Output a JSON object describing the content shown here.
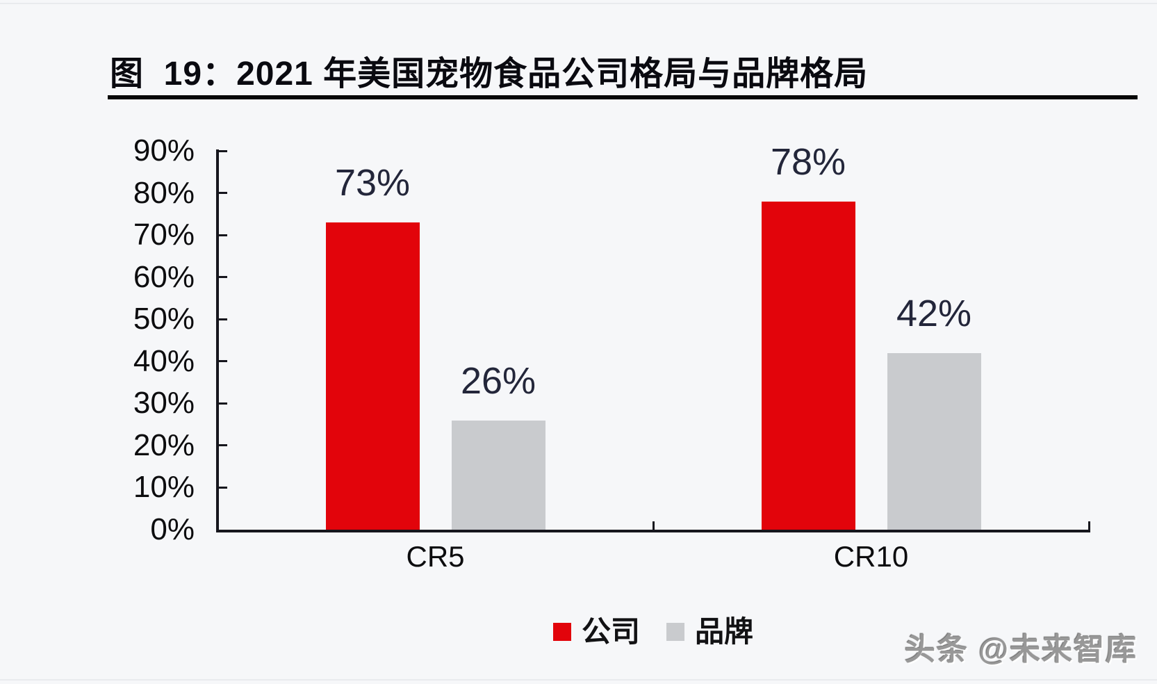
{
  "figure": {
    "title": "图  19：2021 年美国宠物食品公司格局与品牌格局",
    "watermark": "头条 @未来智库"
  },
  "chart_data": {
    "type": "bar",
    "title": "2021 年美国宠物食品公司格局与品牌格局",
    "categories": [
      "CR5",
      "CR10"
    ],
    "series": [
      {
        "name": "公司",
        "slug": "company",
        "color": "#e2040b",
        "values": [
          73,
          78
        ],
        "labels": [
          "73%",
          "78%"
        ]
      },
      {
        "name": "品牌",
        "slug": "brand",
        "color": "#c9cbce",
        "values": [
          26,
          42
        ],
        "labels": [
          "26%",
          "42%"
        ]
      }
    ],
    "ylim": [
      0,
      90
    ],
    "ytick_step": 10,
    "ytick_labels": [
      "0%",
      "10%",
      "20%",
      "30%",
      "40%",
      "50%",
      "60%",
      "70%",
      "80%",
      "90%"
    ],
    "grid": false,
    "legend_position": "bottom",
    "axis_color": "#16161d",
    "value_label_color": "#23263a"
  }
}
